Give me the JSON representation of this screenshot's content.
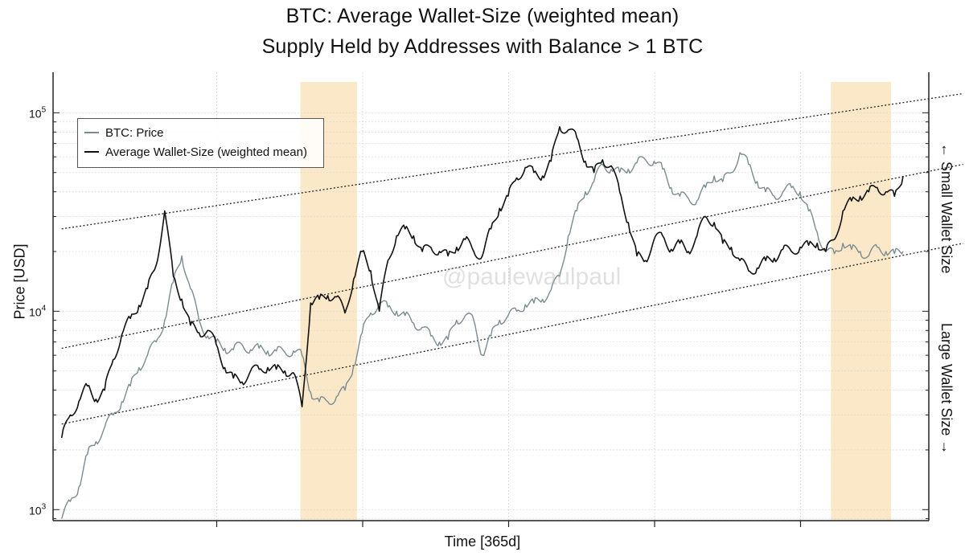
{
  "chart_data": {
    "type": "line",
    "title": "BTC: Average Wallet-Size (weighted mean)",
    "subtitle": "Supply Held by Addresses with Balance > 1 BTC",
    "xlabel": "Time [365d]",
    "ylabel": "Price [USD]",
    "y_scale": "log",
    "ylim": [
      880,
      160000
    ],
    "y_ticks": [
      {
        "value": 1000,
        "base": "10",
        "exp": "3"
      },
      {
        "value": 10000,
        "base": "10",
        "exp": "4"
      },
      {
        "value": 100000,
        "base": "10",
        "exp": "5"
      }
    ],
    "x_tick_labels": [],
    "grid": true,
    "legend_position": "top-left",
    "watermark": "@paulewaulpaul",
    "right_labels": {
      "top": "← Small Wallet Size",
      "bottom": "Large Wallet Size →"
    },
    "x_index_range": [
      0,
      100
    ],
    "highlight_bands": [
      {
        "from": 27.8,
        "to": 34.4,
        "color": "#fbe8c8"
      },
      {
        "from": 89.6,
        "to": 96.6,
        "color": "#fbe8c8"
      }
    ],
    "channel_lines": [
      {
        "name": "upper",
        "start": [
          0,
          26000
        ],
        "end": [
          105,
          125000
        ]
      },
      {
        "name": "middle",
        "start": [
          0,
          6500
        ],
        "end": [
          105,
          55000
        ]
      },
      {
        "name": "lower",
        "start": [
          0,
          2700
        ],
        "end": [
          105,
          22000
        ]
      }
    ],
    "series": [
      {
        "name": "BTC: Price",
        "color": "#7a8c92",
        "x": [
          0,
          1,
          2,
          3,
          4,
          5,
          6,
          7,
          8,
          9,
          10,
          11,
          12,
          13,
          14,
          15,
          16,
          17,
          18,
          19,
          20,
          21,
          22,
          23,
          24,
          25,
          26,
          27,
          28,
          29,
          30,
          31,
          32,
          33,
          34,
          35,
          36,
          37,
          38,
          39,
          40,
          41,
          42,
          43,
          44,
          45,
          46,
          47,
          48,
          49,
          50,
          51,
          52,
          53,
          54,
          55,
          56,
          57,
          58,
          59,
          60,
          61,
          62,
          63,
          64,
          65,
          66,
          67,
          68,
          69,
          70,
          71,
          72,
          73,
          74,
          75,
          76,
          77,
          78,
          79,
          80,
          81,
          82,
          83,
          84,
          85,
          86,
          87,
          88,
          89,
          90,
          91,
          92,
          93,
          94,
          95,
          96,
          97,
          98
        ],
        "values": [
          900,
          1100,
          1300,
          1900,
          2200,
          2600,
          3000,
          3500,
          4200,
          5200,
          6000,
          7000,
          9000,
          14000,
          19000,
          13000,
          9000,
          7500,
          7000,
          6500,
          6400,
          6800,
          6400,
          6500,
          6300,
          6300,
          6200,
          6300,
          6000,
          3900,
          3500,
          3500,
          3700,
          4000,
          5300,
          7800,
          9800,
          11000,
          10500,
          10000,
          9500,
          8700,
          8300,
          7500,
          7000,
          7200,
          9000,
          9500,
          9000,
          6000,
          7500,
          9000,
          9500,
          10000,
          10800,
          11000,
          11500,
          12800,
          15000,
          24000,
          32000,
          40000,
          45000,
          55000,
          52000,
          50000,
          52000,
          56000,
          58000,
          57000,
          52000,
          42000,
          38000,
          37000,
          36000,
          42000,
          48000,
          45000,
          50000,
          63000,
          55000,
          45000,
          40000,
          38000,
          40000,
          42000,
          40000,
          32000,
          25000,
          20000,
          19500,
          22000,
          20500,
          20000,
          19000,
          21000,
          20000,
          19500,
          20000
        ]
      },
      {
        "name": "Average Wallet-Size (weighted mean)",
        "color": "#111111",
        "x": [
          0,
          1,
          2,
          3,
          4,
          5,
          6,
          7,
          8,
          9,
          10,
          11,
          12,
          13,
          14,
          15,
          16,
          17,
          18,
          19,
          20,
          21,
          22,
          23,
          24,
          25,
          26,
          27,
          28,
          29,
          30,
          31,
          32,
          33,
          34,
          35,
          36,
          37,
          38,
          39,
          40,
          41,
          42,
          43,
          44,
          45,
          46,
          47,
          48,
          49,
          50,
          51,
          52,
          53,
          54,
          55,
          56,
          57,
          58,
          59,
          60,
          61,
          62,
          63,
          64,
          65,
          66,
          67,
          68,
          69,
          70,
          71,
          72,
          73,
          74,
          75,
          76,
          77,
          78,
          79,
          80,
          81,
          82,
          83,
          84,
          85,
          86,
          87,
          88,
          89,
          90,
          91,
          92,
          93,
          94,
          95,
          96,
          97,
          98
        ],
        "values": [
          2300,
          3000,
          3500,
          4200,
          3600,
          4000,
          5700,
          7600,
          9200,
          10700,
          13000,
          17000,
          32000,
          15000,
          11500,
          8500,
          7800,
          8000,
          6800,
          5200,
          4600,
          4400,
          5000,
          5100,
          5200,
          5100,
          5000,
          4900,
          3300,
          11000,
          11500,
          12000,
          11800,
          9800,
          14500,
          20000,
          16000,
          10000,
          18000,
          24000,
          26000,
          24000,
          20000,
          21000,
          20000,
          19000,
          21000,
          23000,
          20000,
          19000,
          26000,
          33000,
          38000,
          47000,
          53000,
          50000,
          48000,
          57000,
          85000,
          82000,
          75000,
          57000,
          50000,
          58000,
          54000,
          40000,
          28000,
          19000,
          18000,
          23000,
          24000,
          20500,
          22000,
          20000,
          24000,
          30000,
          28000,
          22000,
          21000,
          18000,
          16000,
          16500,
          18000,
          18500,
          20500,
          20000,
          21000,
          21500,
          22000,
          20000,
          23000,
          32000,
          36000,
          38000,
          40000,
          42000,
          40000,
          38000,
          48000
        ]
      }
    ]
  }
}
